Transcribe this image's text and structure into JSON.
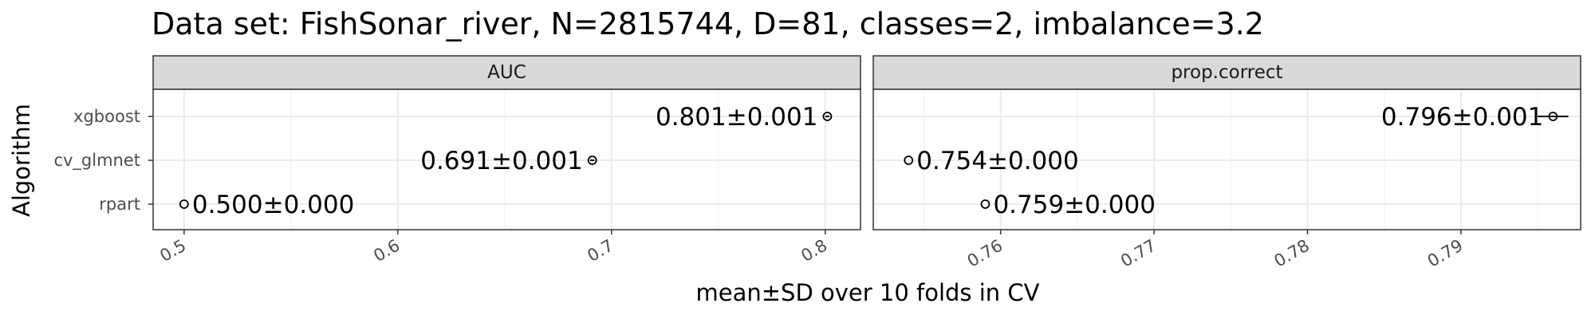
{
  "chart_data": {
    "type": "scatter",
    "title": "Data set: FishSonar_river, N=2815744, D=81, classes=2, imbalance=3.2",
    "xlabel": "mean±SD over 10 folds in CV",
    "ylabel": "Algorithm",
    "categories": [
      "xgboost",
      "cv_glmnet",
      "rpart"
    ],
    "grid": true,
    "panels": [
      {
        "name": "AUC",
        "xlim": [
          0.4855,
          0.8165
        ],
        "xticks": [
          "0.5",
          "0.6",
          "0.7",
          "0.8"
        ],
        "xtick_values": [
          0.5,
          0.6,
          0.7,
          0.8
        ],
        "points": [
          {
            "category": "xgboost",
            "mean": 0.801,
            "sd": 0.001,
            "label": "0.801±0.001",
            "label_side": "left"
          },
          {
            "category": "cv_glmnet",
            "mean": 0.691,
            "sd": 0.001,
            "label": "0.691±0.001",
            "label_side": "left"
          },
          {
            "category": "rpart",
            "mean": 0.5,
            "sd": 0.0,
            "label": "0.500±0.000",
            "label_side": "right"
          }
        ]
      },
      {
        "name": "prop.correct",
        "xlim": [
          0.7517,
          0.7978
        ],
        "xticks": [
          "0.76",
          "0.77",
          "0.78",
          "0.79"
        ],
        "xtick_values": [
          0.76,
          0.77,
          0.78,
          0.79
        ],
        "points": [
          {
            "category": "xgboost",
            "mean": 0.796,
            "sd": 0.001,
            "label": "0.796±0.001",
            "label_side": "left"
          },
          {
            "category": "cv_glmnet",
            "mean": 0.754,
            "sd": 0.0,
            "label": "0.754±0.000",
            "label_side": "right"
          },
          {
            "category": "rpart",
            "mean": 0.759,
            "sd": 0.0,
            "label": "0.759±0.000",
            "label_side": "right"
          }
        ]
      }
    ]
  }
}
